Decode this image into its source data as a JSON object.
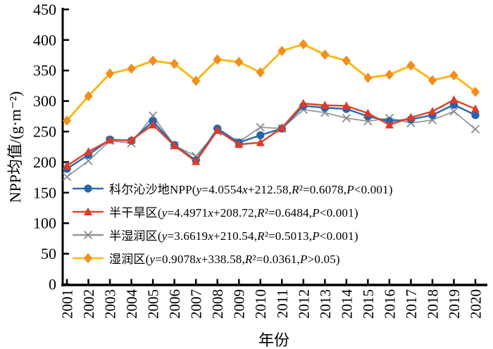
{
  "chart_data": {
    "type": "line",
    "title": "",
    "xlabel": "年份",
    "ylabel": "NPP均值/(g·m⁻²)",
    "ylim": [
      0,
      450
    ],
    "ytick_step": 50,
    "grid": false,
    "legend_position": "inside-left-bottom",
    "axis_color": "#000000",
    "x": [
      2001,
      2002,
      2003,
      2004,
      2005,
      2006,
      2007,
      2008,
      2009,
      2010,
      2011,
      2012,
      2013,
      2014,
      2015,
      2016,
      2017,
      2018,
      2019,
      2020
    ],
    "series": [
      {
        "id": "korqin-sandy-land-npp",
        "name": "科尔沁沙地NPP",
        "equation": "(y=4.0554x+212.58,R²=0.6078,P<0.001)",
        "marker": "circle",
        "color": "#2A6CB3",
        "marker_color": "#2763AA",
        "values": [
          189,
          212,
          237,
          235,
          267,
          228,
          203,
          255,
          232,
          244,
          255,
          292,
          289,
          287,
          275,
          267,
          270,
          277,
          294,
          277
        ]
      },
      {
        "id": "semi-arid-zone",
        "name": "半干旱区",
        "equation": "(y=4.4971x+208.72,R²=0.6484,P<0.001)",
        "marker": "triangle",
        "color": "#E0452C",
        "marker_color": "#DC3B27",
        "values": [
          194,
          217,
          236,
          236,
          261,
          227,
          201,
          252,
          229,
          232,
          256,
          296,
          293,
          292,
          280,
          261,
          273,
          283,
          302,
          287
        ]
      },
      {
        "id": "semi-humid-zone",
        "name": "半湿润区",
        "equation": "(y=3.6619x+210.54,R²=0.5013,P<0.001)",
        "marker": "x",
        "color": "#979797",
        "marker_color": "#8C8C8C",
        "values": [
          176,
          202,
          235,
          231,
          276,
          227,
          210,
          250,
          233,
          257,
          255,
          286,
          281,
          272,
          267,
          272,
          264,
          269,
          283,
          254
        ]
      },
      {
        "id": "humid-zone",
        "name": "湿润区",
        "equation": "(y=0.9078x+338.58,R²=0.0361,P>0.05)",
        "marker": "diamond",
        "color": "#FDB714",
        "marker_color": "#F28D1E",
        "values": [
          268,
          308,
          345,
          353,
          366,
          361,
          333,
          368,
          364,
          347,
          382,
          393,
          376,
          366,
          338,
          343,
          358,
          334,
          342,
          315
        ]
      }
    ]
  }
}
